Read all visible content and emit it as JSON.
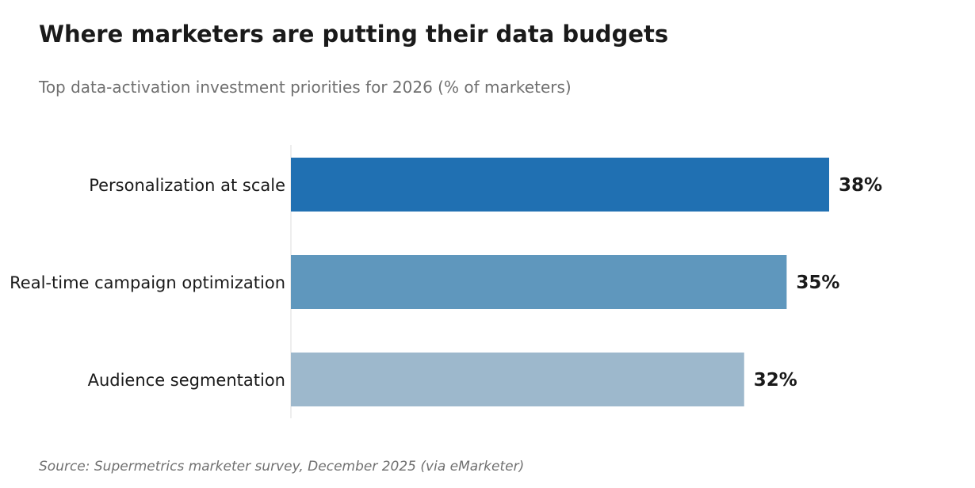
{
  "chart_data": {
    "type": "bar",
    "orientation": "horizontal",
    "title": "Where marketers are putting their data budgets",
    "subtitle": "Top data-activation investment priorities for 2026 (% of marketers)",
    "source": "Source: Supermetrics marketer survey, December 2025 (via eMarketer)",
    "categories": [
      "Personalization at scale",
      "Real-time campaign optimization",
      "Audience segmentation"
    ],
    "values": [
      38,
      35,
      32
    ],
    "value_labels": [
      "38%",
      "35%",
      "32%"
    ],
    "colors": [
      "#2070b2",
      "#5f97bd",
      "#9db8cc"
    ],
    "axis_color": "#dddddd",
    "xlim": [
      0,
      38
    ],
    "grid": false,
    "legend": "none"
  }
}
